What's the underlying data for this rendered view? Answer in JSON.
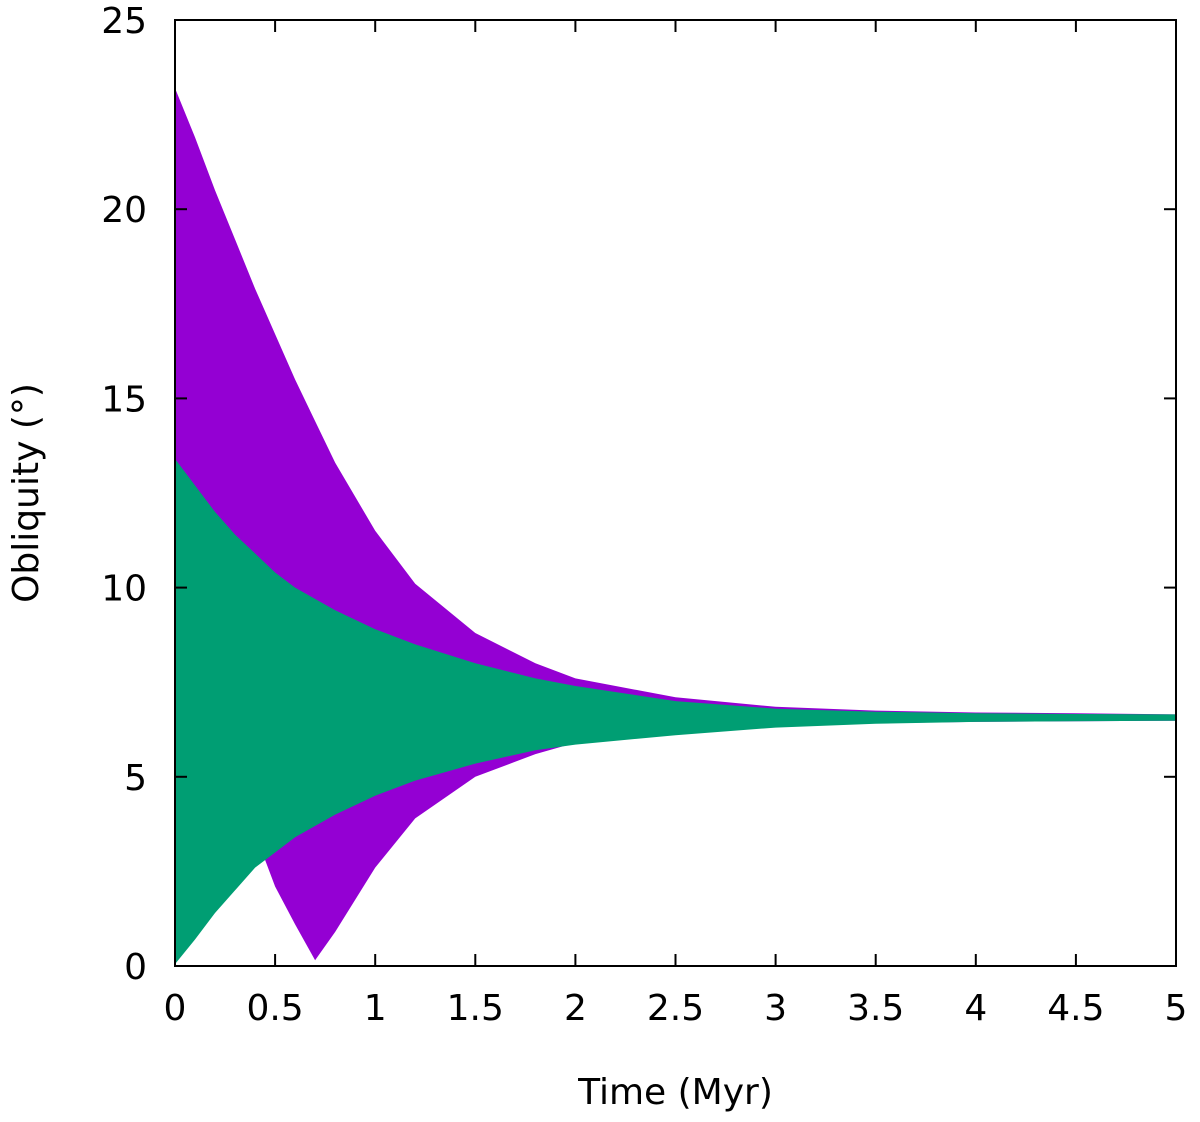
{
  "chart_data": {
    "type": "area",
    "xlabel": "Time (Myr)",
    "ylabel": "Obliquity (°)",
    "xlim": [
      0,
      5
    ],
    "ylim": [
      0,
      25
    ],
    "xticks": [
      "0",
      "0.5",
      "1",
      "1.5",
      "2",
      "2.5",
      "3",
      "3.5",
      "4",
      "4.5",
      "5"
    ],
    "yticks": [
      "0",
      "5",
      "10",
      "15",
      "20",
      "25"
    ],
    "grid": false,
    "legend": "none",
    "series": [
      {
        "color": "#9400d3",
        "x": [
          0,
          0.1,
          0.2,
          0.3,
          0.4,
          0.45,
          0.5,
          0.6,
          0.7,
          0.8,
          1.0,
          1.2,
          1.5,
          1.8,
          2.0,
          2.5,
          3.0,
          3.5,
          4.0,
          4.5,
          5.0
        ],
        "upper": [
          23.2,
          21.9,
          20.5,
          19.2,
          17.9,
          17.3,
          16.7,
          15.5,
          14.4,
          13.3,
          11.5,
          10.1,
          8.8,
          8.0,
          7.6,
          7.1,
          6.85,
          6.75,
          6.7,
          6.68,
          6.65
        ],
        "lower": [
          0.1,
          0.9,
          1.7,
          2.3,
          2.7,
          2.8,
          2.1,
          1.1,
          0.15,
          0.9,
          2.6,
          3.9,
          5.0,
          5.6,
          5.9,
          6.2,
          6.35,
          6.42,
          6.45,
          6.47,
          6.48
        ]
      },
      {
        "color": "#009e73",
        "x": [
          0,
          0.1,
          0.2,
          0.3,
          0.4,
          0.5,
          0.6,
          0.8,
          1.0,
          1.2,
          1.5,
          1.8,
          2.0,
          2.5,
          3.0,
          3.5,
          4.0,
          4.5,
          5.0
        ],
        "upper": [
          13.4,
          12.7,
          12.0,
          11.4,
          10.9,
          10.4,
          10.0,
          9.4,
          8.9,
          8.5,
          8.0,
          7.6,
          7.4,
          7.0,
          6.8,
          6.72,
          6.68,
          6.66,
          6.65
        ],
        "lower": [
          0.05,
          0.7,
          1.4,
          2.0,
          2.6,
          3.0,
          3.4,
          4.0,
          4.5,
          4.9,
          5.35,
          5.7,
          5.85,
          6.1,
          6.3,
          6.4,
          6.45,
          6.47,
          6.48
        ]
      }
    ]
  }
}
